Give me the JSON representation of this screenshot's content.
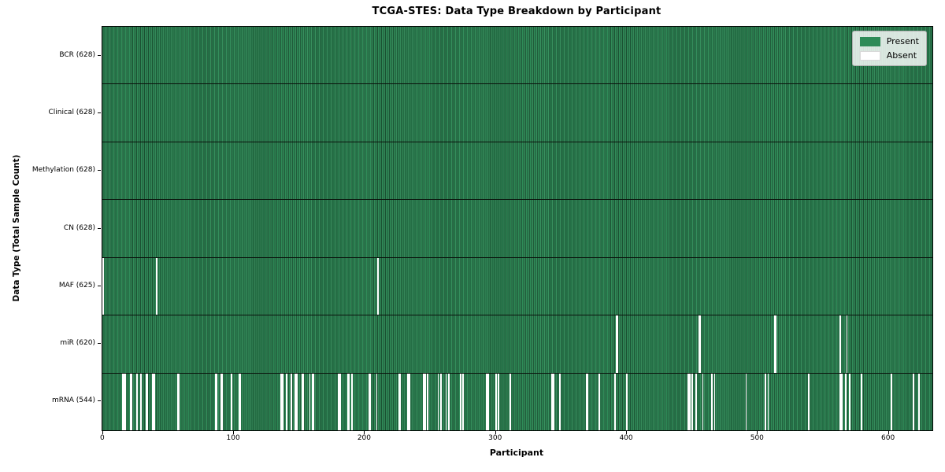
{
  "title": "TCGA-STES: Data Type Breakdown by Participant",
  "xlabel": "Participant",
  "ylabel": "Data Type (Total Sample Count)",
  "legend": {
    "present_label": "Present",
    "absent_label": "Absent",
    "position": "upper right"
  },
  "colors": {
    "present": "#2e8b57",
    "absent": "#ffffff",
    "row_edge": "#0a120c",
    "legend_bg": "#eceeec",
    "legend_border": "#b0b0b0"
  },
  "chart_data": {
    "type": "heatmap",
    "title": "TCGA-STES: Data Type Breakdown by Participant",
    "xlabel": "Participant",
    "ylabel": "Data Type (Total Sample Count)",
    "legend": [
      "Present",
      "Absent"
    ],
    "legend_position": "upper right",
    "grid": false,
    "n_participants": 628,
    "x_ticks": [
      0,
      100,
      200,
      300,
      400,
      500,
      600
    ],
    "rows": [
      {
        "name": "bcr",
        "label": "BCR (628)",
        "present_count": 628,
        "absent_participants": []
      },
      {
        "name": "clinical",
        "label": "Clinical (628)",
        "present_count": 628,
        "absent_participants": []
      },
      {
        "name": "methylation",
        "label": "Methylation (628)",
        "present_count": 628,
        "absent_participants": []
      },
      {
        "name": "cn",
        "label": "CN (628)",
        "present_count": 628,
        "absent_participants": []
      },
      {
        "name": "maf",
        "label": "MAF (625)",
        "present_count": 625,
        "absent_participants": [
          0,
          41,
          210
        ]
      },
      {
        "name": "mir",
        "label": "miR (620)",
        "present_count": 620,
        "absent_participants": [
          392,
          393,
          455,
          456,
          513,
          514,
          563,
          568
        ]
      },
      {
        "name": "mrna",
        "label": "mRNA (544)",
        "present_count": 544,
        "absent_participants": [
          15,
          16,
          17,
          21,
          22,
          26,
          29,
          33,
          34,
          38,
          39,
          57,
          58,
          86,
          87,
          90,
          91,
          98,
          104,
          105,
          136,
          137,
          140,
          144,
          147,
          148,
          152,
          153,
          158,
          160,
          161,
          180,
          181,
          187,
          188,
          190,
          203,
          204,
          209,
          226,
          227,
          233,
          234,
          245,
          246,
          248,
          256,
          258,
          262,
          264,
          273,
          275,
          293,
          294,
          300,
          302,
          311,
          343,
          344,
          349,
          369,
          370,
          379,
          391,
          400,
          447,
          448,
          450,
          453,
          458,
          465,
          467,
          491,
          506,
          508,
          539,
          563,
          564,
          567,
          570,
          579,
          602,
          619,
          623
        ]
      }
    ]
  }
}
